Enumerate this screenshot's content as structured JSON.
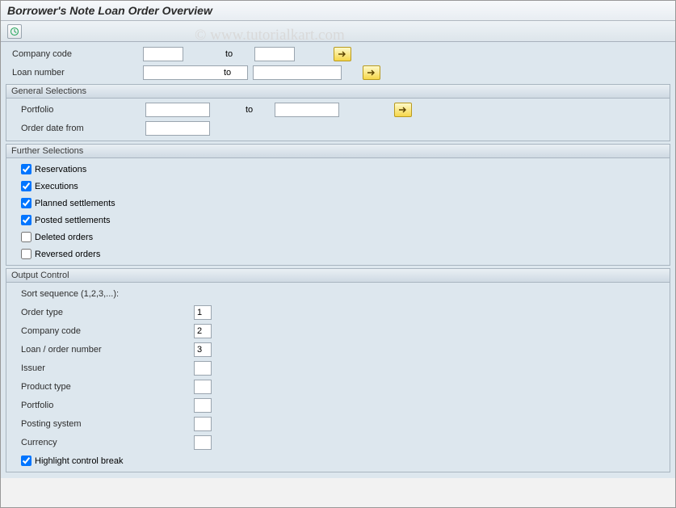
{
  "title": "Borrower's Note Loan Order Overview",
  "watermark": "© www.tutorialkart.com",
  "topFields": {
    "company": {
      "label": "Company code",
      "val": "",
      "toLbl": "to",
      "toVal": ""
    },
    "loan": {
      "label": "Loan number",
      "val": "",
      "toLbl": "to",
      "toVal": ""
    }
  },
  "general": {
    "title": "General Selections",
    "portfolio": {
      "label": "Portfolio",
      "val": "",
      "toLbl": "to",
      "toVal": ""
    },
    "orderDate": {
      "label": "Order date from",
      "val": ""
    }
  },
  "further": {
    "title": "Further Selections",
    "items": [
      {
        "label": "Reservations",
        "checked": true
      },
      {
        "label": "Executions",
        "checked": true
      },
      {
        "label": "Planned settlements",
        "checked": true
      },
      {
        "label": "Posted settlements",
        "checked": true
      },
      {
        "label": "Deleted orders",
        "checked": false
      },
      {
        "label": "Reversed orders",
        "checked": false
      }
    ]
  },
  "output": {
    "title": "Output Control",
    "sortLbl": "Sort sequence (1,2,3,...):",
    "fields": [
      {
        "label": "Order type",
        "val": "1"
      },
      {
        "label": "Company code",
        "val": "2"
      },
      {
        "label": "Loan / order number",
        "val": "3"
      },
      {
        "label": "Issuer",
        "val": ""
      },
      {
        "label": "Product type",
        "val": ""
      },
      {
        "label": "Portfolio",
        "val": ""
      },
      {
        "label": "Posting system",
        "val": ""
      },
      {
        "label": "Currency",
        "val": ""
      }
    ],
    "highlight": {
      "label": "Highlight control break",
      "checked": true
    }
  },
  "colors": {
    "panelBg": "#dde7ee",
    "border": "#a8b5c0",
    "multBtn": "#f6d74a"
  }
}
